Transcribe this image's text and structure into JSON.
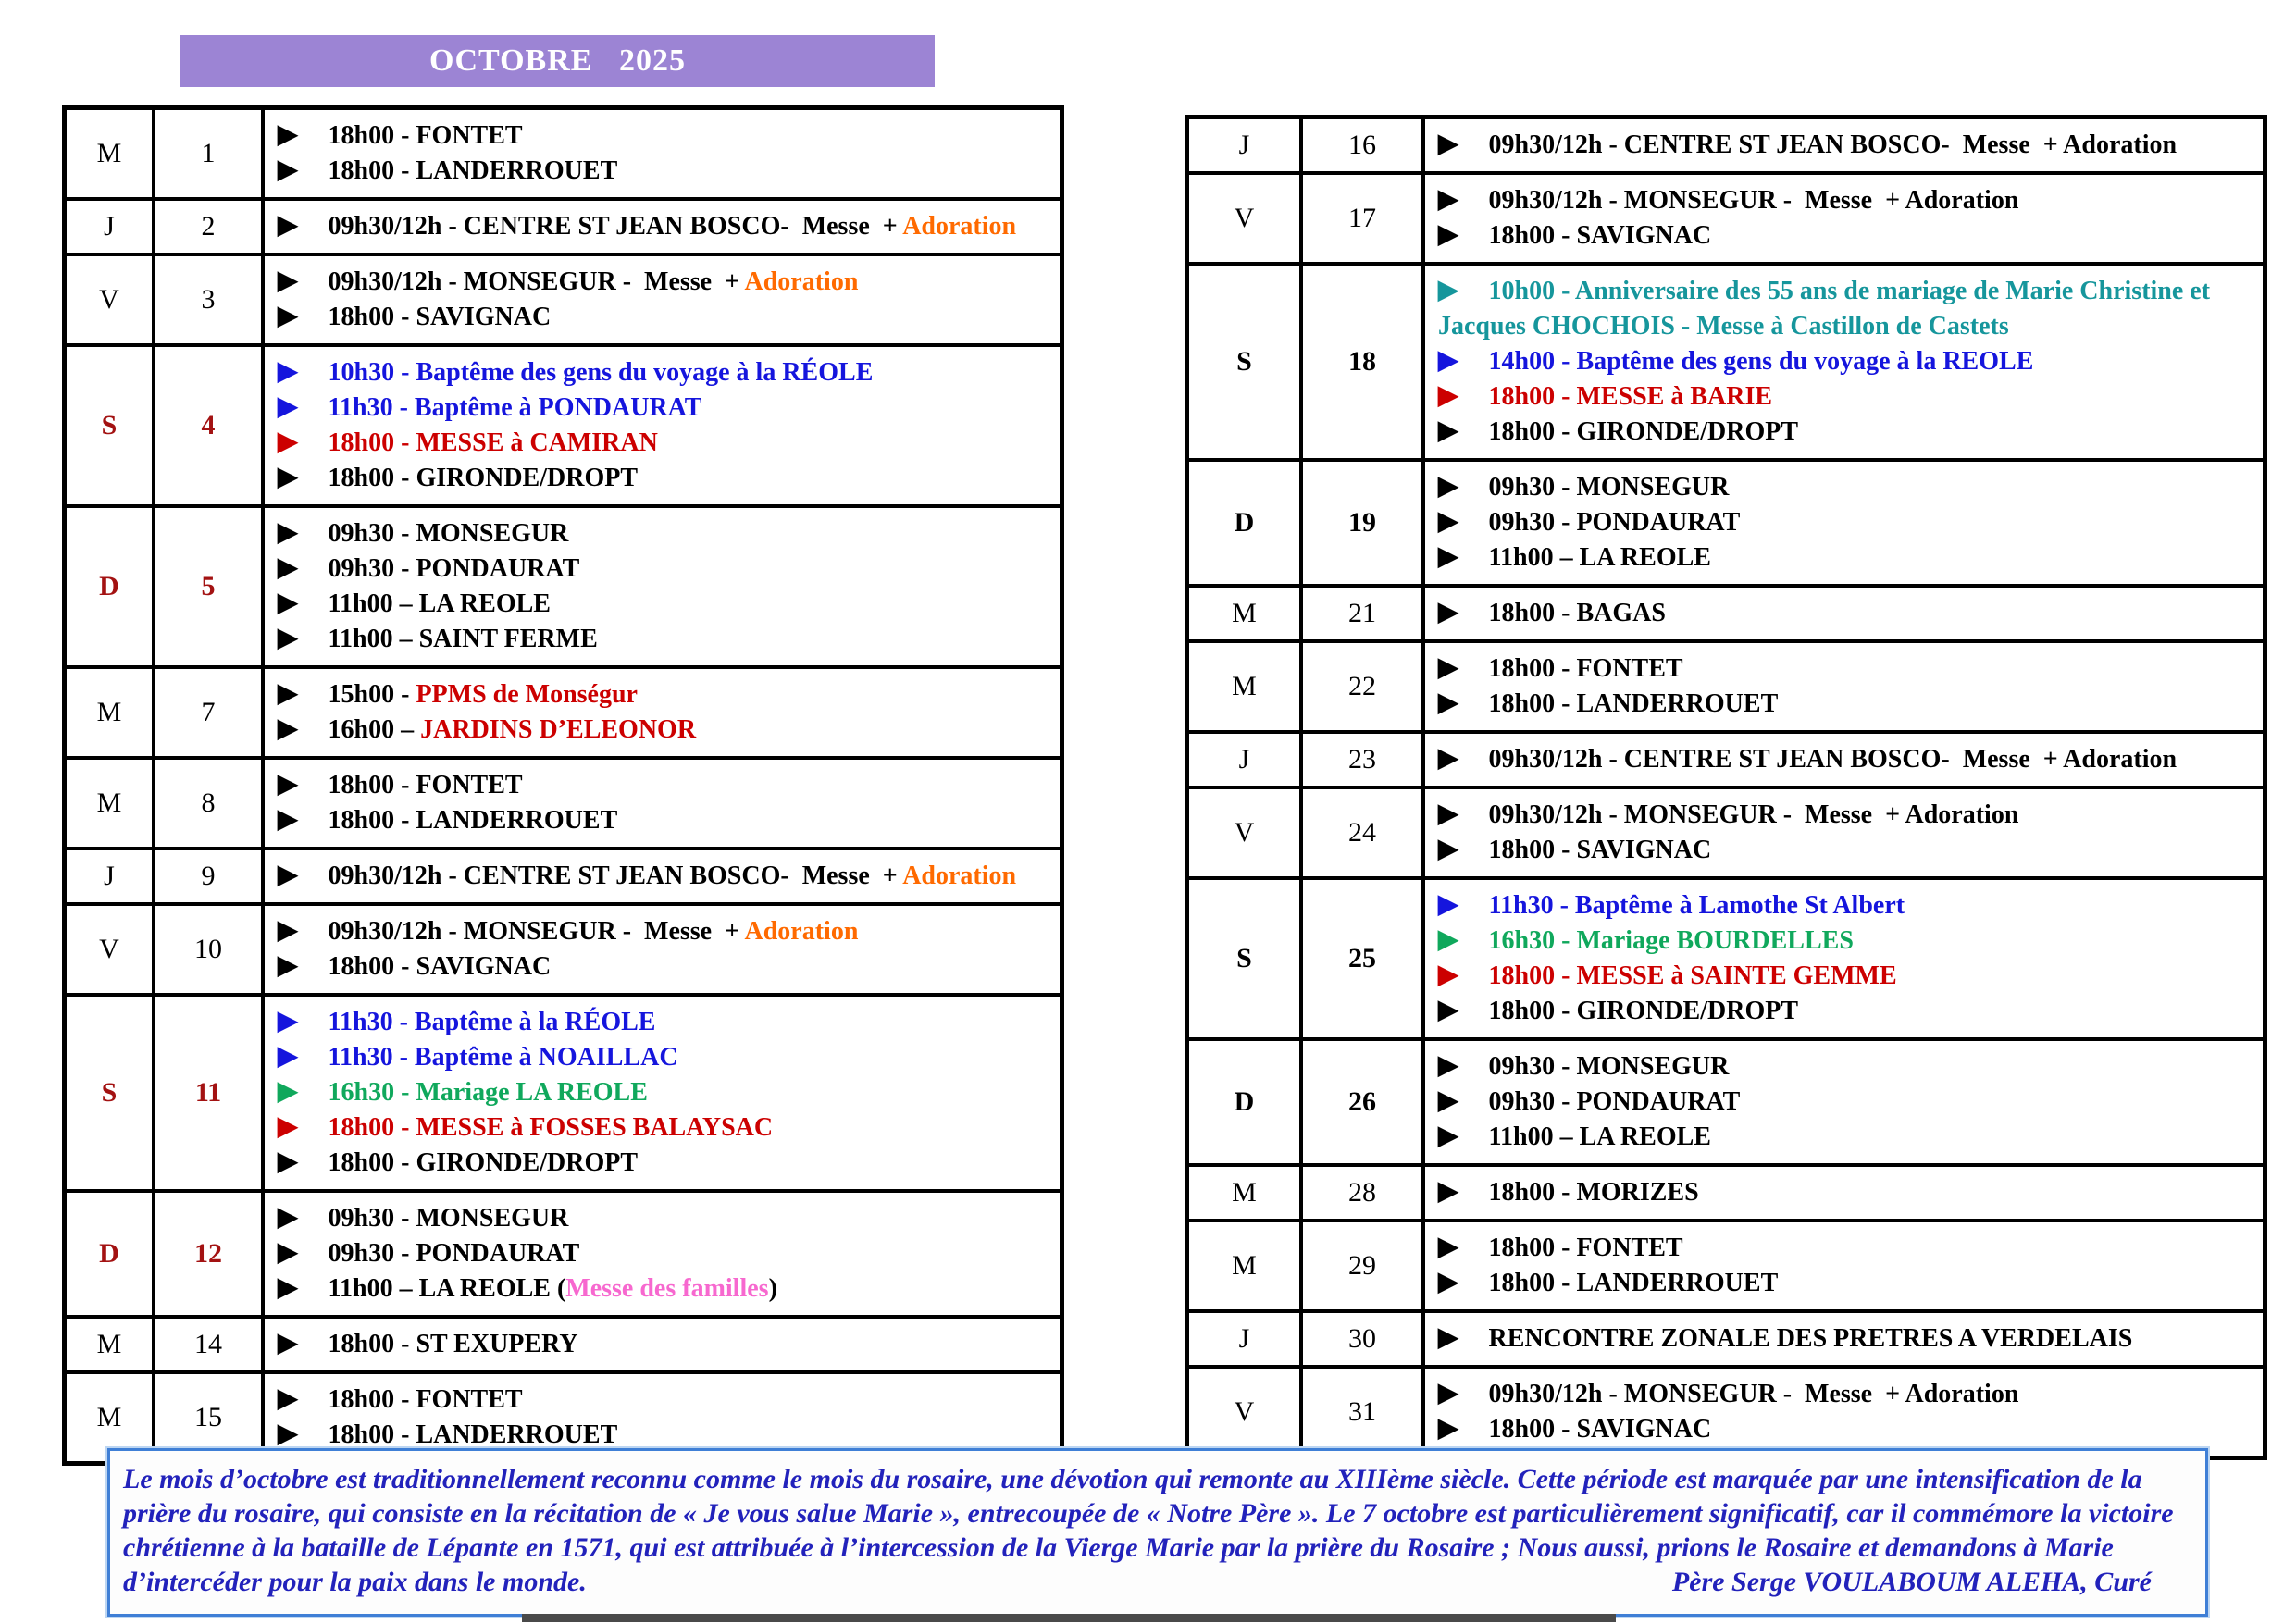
{
  "title": "OCTOBRE   2025",
  "colors": {
    "black": "#000000",
    "blue": "#1515dd",
    "red": "#cc0000",
    "green": "#10a85c",
    "teal": "#16969c",
    "orange": "#ff6a00",
    "pink": "#f768cf",
    "day_red": "#a31212",
    "banner_bg": "#9c84d4",
    "footer_blue": "#2222bb",
    "footer_border": "#3f7fd6"
  },
  "left_table": {
    "rows": [
      {
        "day": "M",
        "num": "1",
        "style": "",
        "events": [
          {
            "b": "black",
            "segs": [
              [
                "18h00 - FONTET",
                "black"
              ]
            ]
          },
          {
            "b": "black",
            "segs": [
              [
                "18h00 - LANDERROUET",
                "black"
              ]
            ]
          }
        ]
      },
      {
        "day": "J",
        "num": "2",
        "style": "",
        "events": [
          {
            "b": "black",
            "segs": [
              [
                "09h30/12h - CENTRE ST JEAN BOSCO-  Messe  + ",
                "black"
              ],
              [
                "Adoration",
                "orange"
              ]
            ]
          }
        ]
      },
      {
        "day": "V",
        "num": "3",
        "style": "",
        "events": [
          {
            "b": "black",
            "segs": [
              [
                "09h30/12h - MONSEGUR -  Messe  + ",
                "black"
              ],
              [
                "Adoration",
                "orange"
              ]
            ]
          },
          {
            "b": "black",
            "segs": [
              [
                "18h00 - SAVIGNAC",
                "black"
              ]
            ]
          }
        ]
      },
      {
        "day": "S",
        "num": "4",
        "style": "red",
        "events": [
          {
            "b": "blue",
            "segs": [
              [
                "10h30 - Baptême des gens du voyage à la RÉOLE",
                "blue"
              ]
            ]
          },
          {
            "b": "blue",
            "segs": [
              [
                "11h30 - Baptême à PONDAURAT",
                "blue"
              ]
            ]
          },
          {
            "b": "red",
            "segs": [
              [
                "18h00 - MESSE à CAMIRAN",
                "red"
              ]
            ]
          },
          {
            "b": "black",
            "segs": [
              [
                "18h00 - GIRONDE/DROPT",
                "black"
              ]
            ]
          }
        ]
      },
      {
        "day": "D",
        "num": "5",
        "style": "red",
        "events": [
          {
            "b": "black",
            "segs": [
              [
                "09h30 - MONSEGUR",
                "black"
              ]
            ]
          },
          {
            "b": "black",
            "segs": [
              [
                "09h30 - PONDAURAT",
                "black"
              ]
            ]
          },
          {
            "b": "black",
            "segs": [
              [
                "11h00 – LA REOLE",
                "black"
              ]
            ]
          },
          {
            "b": "black",
            "segs": [
              [
                "11h00 – SAINT FERME",
                "black"
              ]
            ]
          }
        ]
      },
      {
        "day": "M",
        "num": "7",
        "style": "",
        "events": [
          {
            "b": "black",
            "segs": [
              [
                "15h00 - ",
                "black"
              ],
              [
                "PPMS de Monségur",
                "red"
              ]
            ]
          },
          {
            "b": "black",
            "segs": [
              [
                "16h00 – ",
                "black"
              ],
              [
                "JARDINS D’ELEONOR",
                "red"
              ]
            ]
          }
        ]
      },
      {
        "day": "M",
        "num": "8",
        "style": "",
        "events": [
          {
            "b": "black",
            "segs": [
              [
                "18h00 - FONTET",
                "black"
              ]
            ]
          },
          {
            "b": "black",
            "segs": [
              [
                "18h00 - LANDERROUET",
                "black"
              ]
            ]
          }
        ]
      },
      {
        "day": "J",
        "num": "9",
        "style": "",
        "events": [
          {
            "b": "black",
            "segs": [
              [
                "09h30/12h - CENTRE ST JEAN BOSCO-  Messe  + ",
                "black"
              ],
              [
                "Adoration",
                "orange"
              ]
            ]
          }
        ]
      },
      {
        "day": "V",
        "num": "10",
        "style": "",
        "events": [
          {
            "b": "black",
            "segs": [
              [
                "09h30/12h - MONSEGUR -  Messe  + ",
                "black"
              ],
              [
                "Adoration",
                "orange"
              ]
            ]
          },
          {
            "b": "black",
            "segs": [
              [
                "18h00 - SAVIGNAC",
                "black"
              ]
            ]
          }
        ]
      },
      {
        "day": "S",
        "num": "11",
        "style": "red",
        "events": [
          {
            "b": "blue",
            "segs": [
              [
                "11h30 - Baptême à la RÉOLE",
                "blue"
              ]
            ]
          },
          {
            "b": "blue",
            "segs": [
              [
                "11h30 - Baptême à NOAILLAC",
                "blue"
              ]
            ]
          },
          {
            "b": "green",
            "segs": [
              [
                "16h30 - Mariage LA REOLE",
                "green"
              ]
            ]
          },
          {
            "b": "red",
            "segs": [
              [
                "18h00 - MESSE à FOSSES BALAYSAC",
                "red"
              ]
            ]
          },
          {
            "b": "black",
            "segs": [
              [
                "18h00 - GIRONDE/DROPT",
                "black"
              ]
            ]
          }
        ]
      },
      {
        "day": "D",
        "num": "12",
        "style": "red",
        "events": [
          {
            "b": "black",
            "segs": [
              [
                "09h30 - MONSEGUR",
                "black"
              ]
            ]
          },
          {
            "b": "black",
            "segs": [
              [
                "09h30 - PONDAURAT",
                "black"
              ]
            ]
          },
          {
            "b": "black",
            "segs": [
              [
                "11h00 – LA REOLE (",
                "black"
              ],
              [
                "Messe des familles",
                "pink"
              ],
              [
                ")",
                "black"
              ]
            ]
          }
        ]
      },
      {
        "day": "M",
        "num": "14",
        "style": "",
        "events": [
          {
            "b": "black",
            "segs": [
              [
                "18h00 - ST EXUPERY",
                "black"
              ]
            ]
          }
        ]
      },
      {
        "day": "M",
        "num": "15",
        "style": "",
        "events": [
          {
            "b": "black",
            "segs": [
              [
                "18h00 - FONTET",
                "black"
              ]
            ]
          },
          {
            "b": "black",
            "segs": [
              [
                "18h00 - LANDERROUET",
                "black"
              ]
            ]
          }
        ]
      }
    ]
  },
  "right_table": {
    "rows": [
      {
        "day": "J",
        "num": "16",
        "style": "",
        "events": [
          {
            "b": "black",
            "segs": [
              [
                "09h30/12h - CENTRE ST JEAN BOSCO-  Messe  + Adoration",
                "black"
              ]
            ]
          }
        ]
      },
      {
        "day": "V",
        "num": "17",
        "style": "",
        "events": [
          {
            "b": "black",
            "segs": [
              [
                "09h30/12h - MONSEGUR -  Messe  + Adoration",
                "black"
              ]
            ]
          },
          {
            "b": "black",
            "segs": [
              [
                "18h00 - SAVIGNAC",
                "black"
              ]
            ]
          }
        ]
      },
      {
        "day": "S",
        "num": "18",
        "style": "bold",
        "events": [
          {
            "b": "teal",
            "segs": [
              [
                "10h00 - Anniversaire des 55 ans de mariage de Marie Christine et Jacques CHOCHOIS - Messe à Castillon de Castets",
                "teal"
              ]
            ]
          },
          {
            "b": "blue",
            "segs": [
              [
                "14h00 - Baptême des gens du voyage à la REOLE",
                "blue"
              ]
            ]
          },
          {
            "b": "red",
            "segs": [
              [
                "18h00 - MESSE à BARIE",
                "red"
              ]
            ]
          },
          {
            "b": "black",
            "segs": [
              [
                "18h00 - GIRONDE/DROPT",
                "black"
              ]
            ]
          }
        ]
      },
      {
        "day": "D",
        "num": "19",
        "style": "bold",
        "events": [
          {
            "b": "black",
            "segs": [
              [
                "09h30 - MONSEGUR",
                "black"
              ]
            ]
          },
          {
            "b": "black",
            "segs": [
              [
                "09h30 - PONDAURAT",
                "black"
              ]
            ]
          },
          {
            "b": "black",
            "segs": [
              [
                "11h00 – LA REOLE",
                "black"
              ]
            ]
          }
        ]
      },
      {
        "day": "M",
        "num": "21",
        "style": "",
        "events": [
          {
            "b": "black",
            "segs": [
              [
                "18h00 - BAGAS",
                "black"
              ]
            ]
          }
        ]
      },
      {
        "day": "M",
        "num": "22",
        "style": "",
        "events": [
          {
            "b": "black",
            "segs": [
              [
                "18h00 - FONTET",
                "black"
              ]
            ]
          },
          {
            "b": "black",
            "segs": [
              [
                "18h00 - LANDERROUET",
                "black"
              ]
            ]
          }
        ]
      },
      {
        "day": "J",
        "num": "23",
        "style": "",
        "events": [
          {
            "b": "black",
            "segs": [
              [
                "09h30/12h - CENTRE ST JEAN BOSCO-  Messe  + Adoration",
                "black"
              ]
            ]
          }
        ]
      },
      {
        "day": "V",
        "num": "24",
        "style": "",
        "events": [
          {
            "b": "black",
            "segs": [
              [
                "09h30/12h - MONSEGUR -  Messe  + Adoration",
                "black"
              ]
            ]
          },
          {
            "b": "black",
            "segs": [
              [
                "18h00 - SAVIGNAC",
                "black"
              ]
            ]
          }
        ]
      },
      {
        "day": "S",
        "num": "25",
        "style": "bold",
        "events": [
          {
            "b": "blue",
            "segs": [
              [
                "11h30 - Baptême à Lamothe St Albert",
                "blue"
              ]
            ]
          },
          {
            "b": "green",
            "segs": [
              [
                "16h30 - Mariage BOURDELLES",
                "green"
              ]
            ]
          },
          {
            "b": "red",
            "segs": [
              [
                "18h00 - MESSE à SAINTE GEMME",
                "red"
              ]
            ]
          },
          {
            "b": "black",
            "segs": [
              [
                "18h00 - GIRONDE/DROPT",
                "black"
              ]
            ]
          }
        ]
      },
      {
        "day": "D",
        "num": "26",
        "style": "bold",
        "events": [
          {
            "b": "black",
            "segs": [
              [
                "09h30 - MONSEGUR",
                "black"
              ]
            ]
          },
          {
            "b": "black",
            "segs": [
              [
                "09h30 - PONDAURAT",
                "black"
              ]
            ]
          },
          {
            "b": "black",
            "segs": [
              [
                "11h00 – LA REOLE",
                "black"
              ]
            ]
          }
        ]
      },
      {
        "day": "M",
        "num": "28",
        "style": "",
        "events": [
          {
            "b": "black",
            "segs": [
              [
                "18h00 - MORIZES",
                "black"
              ]
            ]
          }
        ]
      },
      {
        "day": "M",
        "num": "29",
        "style": "",
        "events": [
          {
            "b": "black",
            "segs": [
              [
                "18h00 - FONTET",
                "black"
              ]
            ]
          },
          {
            "b": "black",
            "segs": [
              [
                "18h00 - LANDERROUET",
                "black"
              ]
            ]
          }
        ]
      },
      {
        "day": "J",
        "num": "30",
        "style": "",
        "events": [
          {
            "b": "black",
            "segs": [
              [
                "RENCONTRE ZONALE DES PRETRES A VERDELAIS",
                "black"
              ]
            ]
          }
        ]
      },
      {
        "day": "V",
        "num": "31",
        "style": "",
        "events": [
          {
            "b": "black",
            "segs": [
              [
                "09h30/12h - MONSEGUR -  Messe  + Adoration",
                "black"
              ]
            ]
          },
          {
            "b": "black",
            "segs": [
              [
                "18h00 - SAVIGNAC",
                "black"
              ]
            ]
          }
        ]
      }
    ]
  },
  "footer": {
    "text": "Le mois d’octobre est traditionnellement reconnu comme le mois du rosaire, une dévotion qui remonte au XIIIème siècle. Cette période est marquée par une intensification de la prière du rosaire, qui consiste en la récitation de « Je vous salue Marie », entrecoupée de « Notre Père ». Le 7 octobre est particulièrement significatif, car il commémore la victoire chrétienne à la bataille de Lépante en 1571, qui est attribuée à l’intercession de la Vierge Marie par la prière du Rosaire ;  Nous aussi, prions le Rosaire et demandons à Marie d’intercéder pour la paix dans le monde.",
    "signature": "Père Serge VOULABOUM ALEHA, Curé"
  }
}
